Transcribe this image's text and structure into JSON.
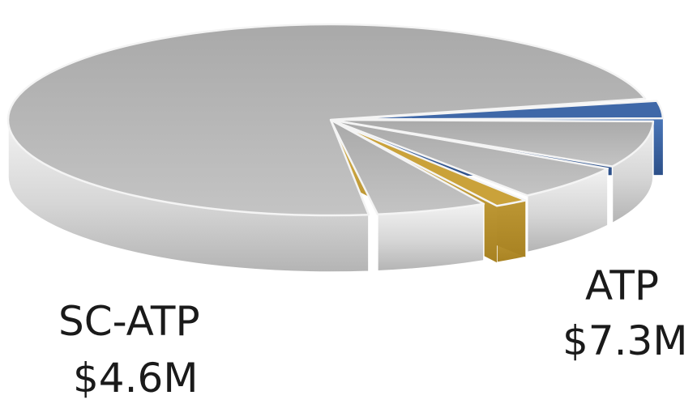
{
  "chart_data": {
    "type": "pie",
    "style": "3d-exploded",
    "legend": "none",
    "slices": [
      {
        "label": "ATP",
        "value_text": "$7.3M",
        "value": 7.3,
        "color": "#3f68a8",
        "highlighted": true
      },
      {
        "label": "",
        "value": 18,
        "color": "#bdbdbd",
        "highlighted": false
      },
      {
        "label": "",
        "value": 14,
        "color": "#bdbdbd",
        "highlighted": false
      },
      {
        "label": "SC-ATP",
        "value_text": "$4.6M",
        "value": 4.6,
        "color": "#caa23a",
        "highlighted": true
      },
      {
        "label": "",
        "value": 13,
        "color": "#bdbdbd",
        "highlighted": false
      },
      {
        "label": "",
        "value": 160,
        "color": "#bdbdbd",
        "highlighted": false
      }
    ]
  }
}
